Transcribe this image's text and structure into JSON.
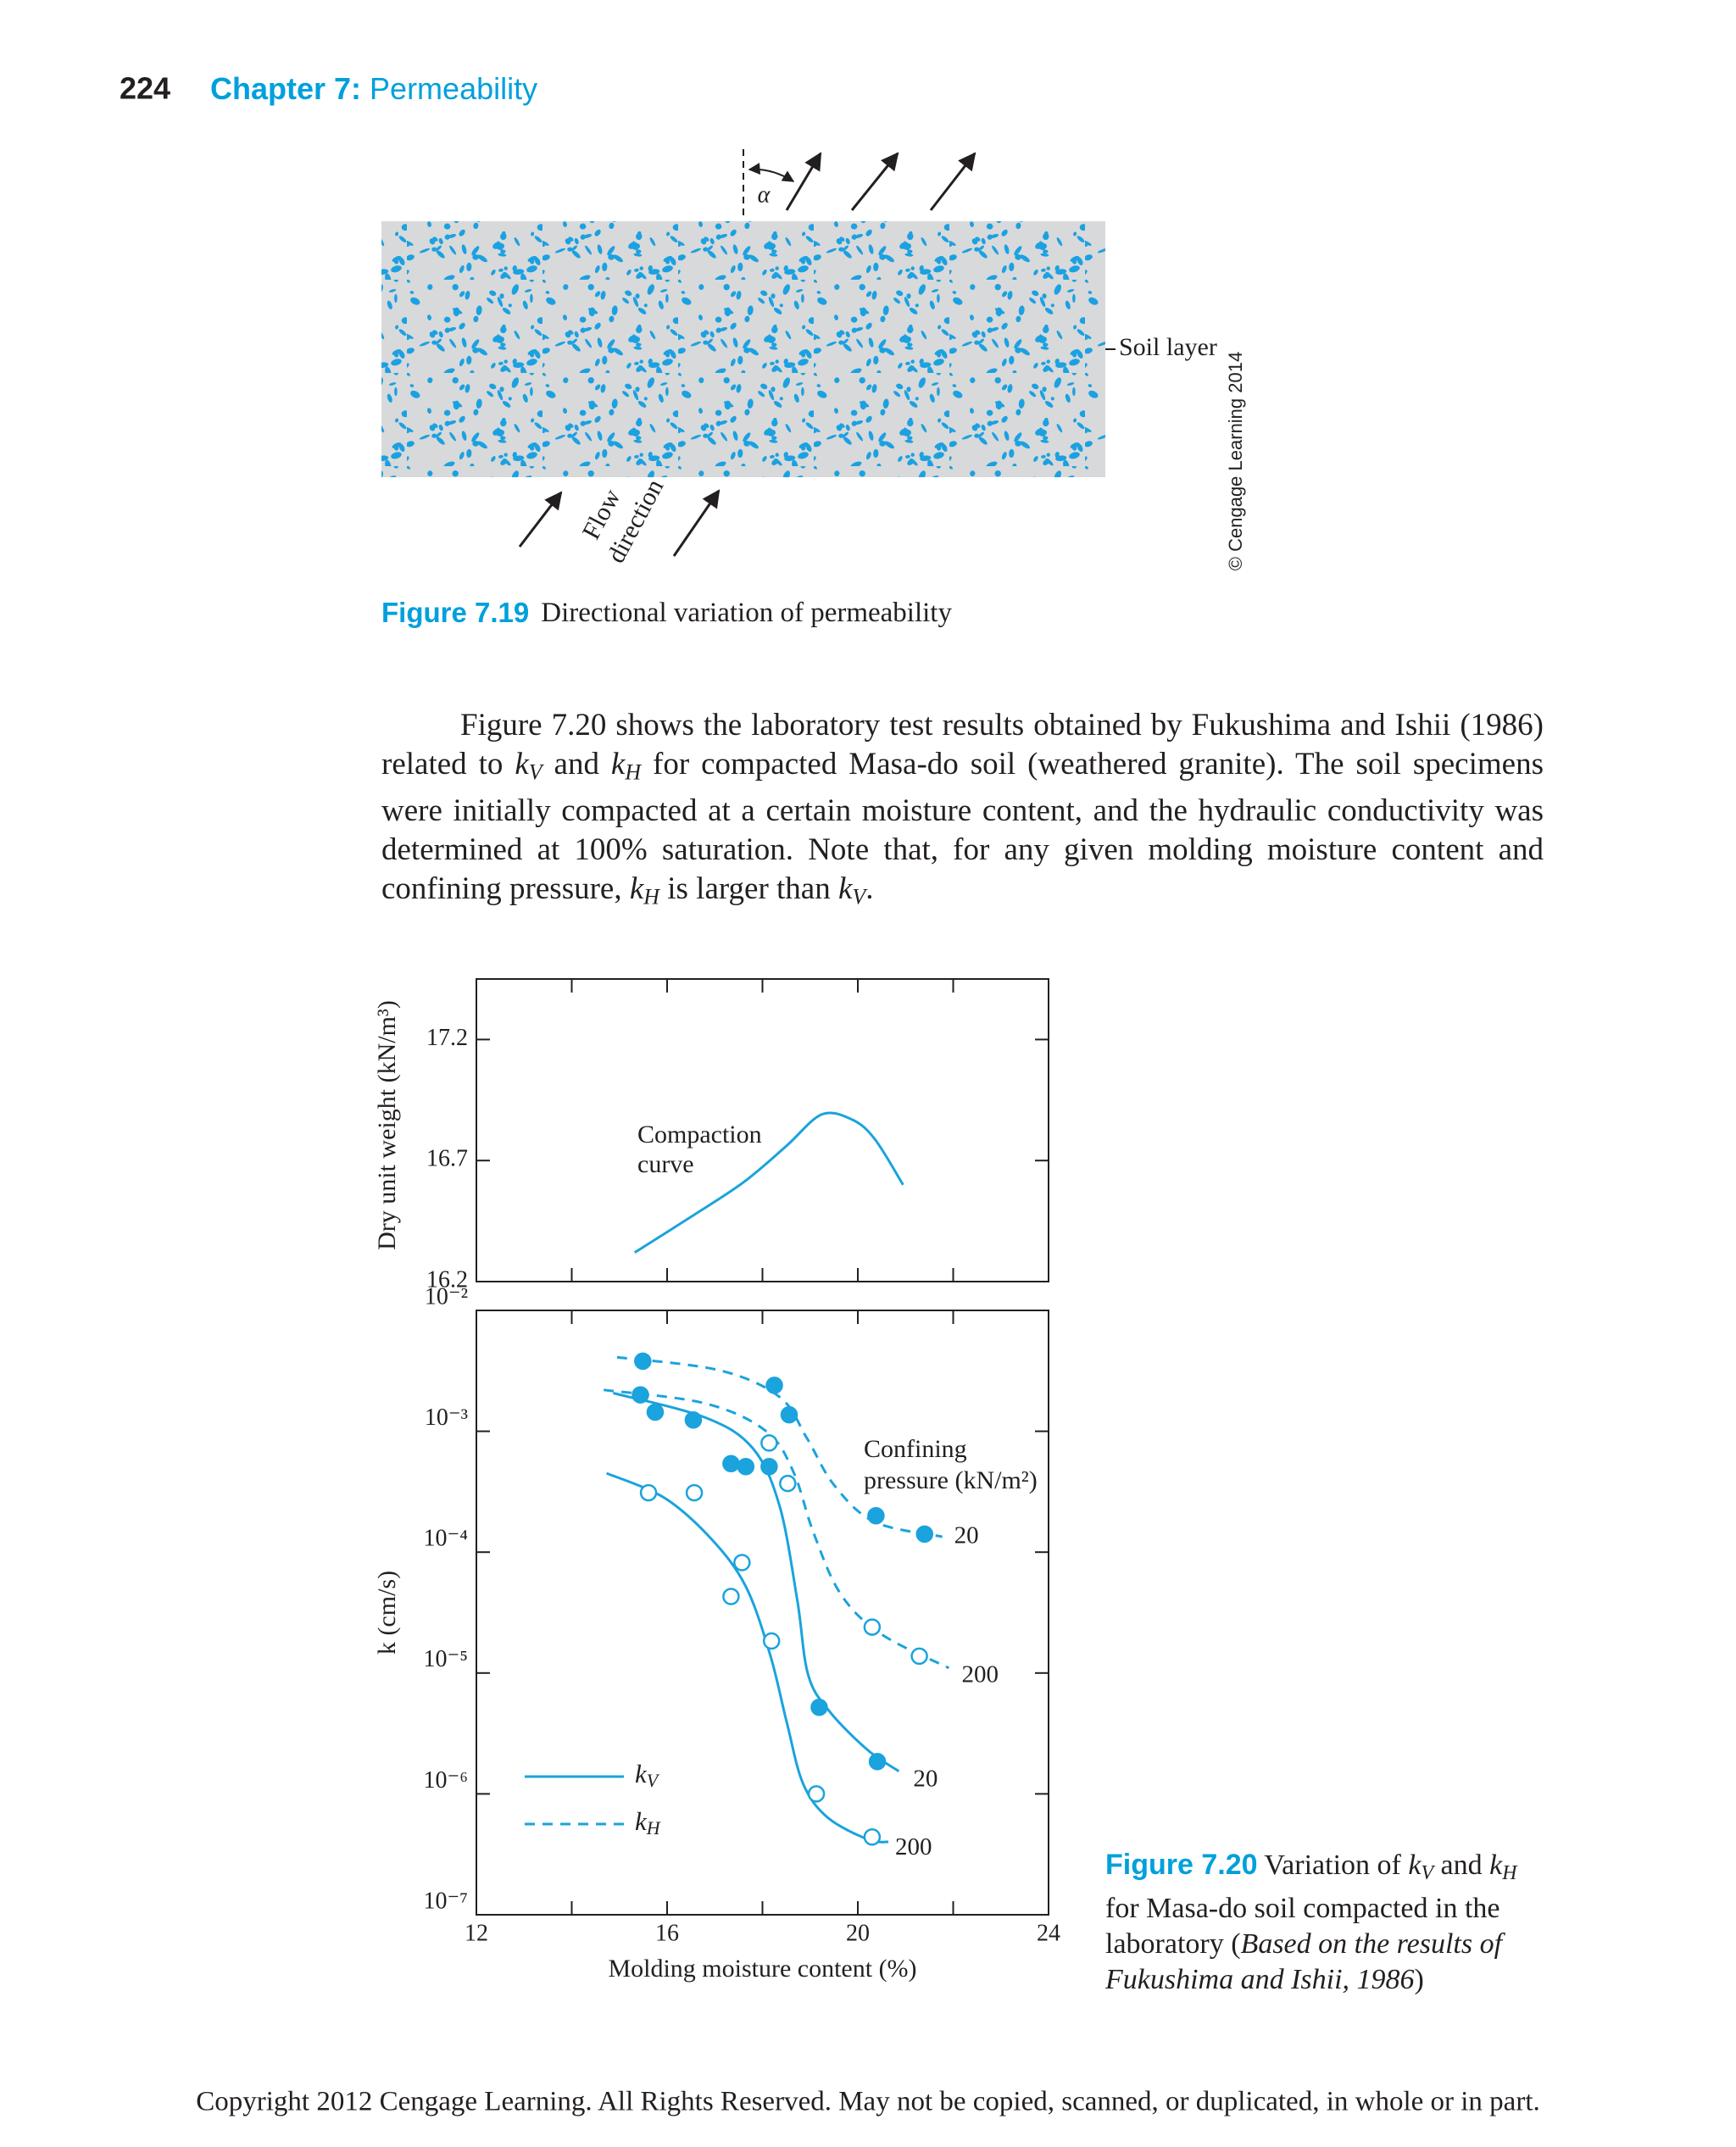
{
  "header": {
    "page_number": "224",
    "chapter": "Chapter 7:",
    "chapter_title": "Permeability"
  },
  "figure_7_19": {
    "angle_label": "α",
    "layer_label": "Soil layer",
    "flow_label": [
      "Flow",
      "direction"
    ],
    "credit": "© Cengage Learning 2014",
    "caption_label": "Figure 7.19",
    "caption_text": "Directional variation of permeability"
  },
  "paragraph": {
    "runs": [
      {
        "text": "Figure 7.20 shows the laboratory test results obtained by Fukushima and Ishii (1986) related to ",
        "style": "plain"
      },
      {
        "text": "k",
        "style": "italic"
      },
      {
        "text": "V",
        "style": "sub"
      },
      {
        "text": " and ",
        "style": "plain"
      },
      {
        "text": "k",
        "style": "italic"
      },
      {
        "text": "H",
        "style": "sub"
      },
      {
        "text": " for compacted Masa-do soil (weathered granite). The soil specimens were initially compacted at a certain moisture content, and the hydraulic conductivity was determined at 100% saturation. Note that, for any given molding moisture content and confining pressure, ",
        "style": "plain"
      },
      {
        "text": "k",
        "style": "italic"
      },
      {
        "text": "H",
        "style": "sub"
      },
      {
        "text": " is larger than ",
        "style": "plain"
      },
      {
        "text": "k",
        "style": "italic"
      },
      {
        "text": "V",
        "style": "sub"
      },
      {
        "text": ".",
        "style": "plain"
      }
    ]
  },
  "chart_data": [
    {
      "type": "line",
      "ylabel": "Dry unit weight (kN/m³)",
      "annotation": [
        "Compaction",
        "curve"
      ],
      "color": "#1aa3dc",
      "x": [
        15.32,
        16.52,
        17.6,
        18.5,
        19.24,
        19.87,
        20.35,
        20.95
      ],
      "values": [
        16.32,
        16.47,
        16.61,
        16.76,
        16.89,
        16.87,
        16.79,
        16.6
      ],
      "xlim": [
        12,
        24
      ],
      "xtick_marks": [
        14,
        16,
        18,
        20,
        22
      ],
      "ylim": [
        16.2,
        17.45
      ],
      "yticks": [
        16.2,
        16.7,
        17.2
      ]
    },
    {
      "type": "scatter",
      "ylabel": "k (cm/s)",
      "xlabel": "Molding moisture content (%)",
      "annotation": [
        "Confining",
        "pressure (kN/m²)"
      ],
      "log_y": true,
      "xlim": [
        12,
        24
      ],
      "xticks": [
        12,
        16,
        20,
        24
      ],
      "xtick_marks": [
        14,
        18,
        22
      ],
      "ylim": [
        1e-07,
        0.01
      ],
      "yticks": [
        {
          "value": 1e-07,
          "label": "10⁻⁷"
        },
        {
          "value": 1e-06,
          "label": "10⁻⁶"
        },
        {
          "value": 1e-05,
          "label": "10⁻⁵"
        },
        {
          "value": 0.0001,
          "label": "10⁻⁴"
        },
        {
          "value": 0.001,
          "label": "10⁻³"
        },
        {
          "value": 0.01,
          "label": "10⁻²"
        }
      ],
      "legend": [
        {
          "symbol": "k",
          "subscript": "V",
          "line_style": "solid"
        },
        {
          "symbol": "k",
          "subscript": "H",
          "line_style": "dashed"
        }
      ],
      "series": [
        {
          "name": "20",
          "line_style": "dashed",
          "marker": "filled",
          "color": "#1aa3dc",
          "x": [
            15.49,
            18.25,
            18.56,
            20.38,
            21.4
          ],
          "values": [
            0.0038,
            0.0024,
            0.00137,
            0.0002,
            0.000141
          ],
          "fit_x": [
            14.95,
            17.09,
            18.36,
            18.93,
            19.5,
            20.35,
            21.77
          ],
          "fit_values": [
            0.0041,
            0.0032,
            0.00192,
            0.00088,
            0.00036,
            0.000178,
            0.000134
          ]
        },
        {
          "name": "200",
          "line_style": "dashed",
          "marker": "open",
          "color": "#1aa3dc",
          "x": [
            18.14,
            18.53,
            20.3,
            21.29
          ],
          "values": [
            0.0008,
            0.00037,
            2.4e-05,
            1.38e-05
          ],
          "fit_x": [
            14.67,
            16.8,
            18.08,
            18.65,
            19.07,
            19.64,
            20.49,
            21.91
          ],
          "fit_values": [
            0.0022,
            0.0017,
            0.001,
            0.00046,
            0.000145,
            4.5e-05,
            2.1e-05,
            1.1e-05
          ]
        },
        {
          "name": "20",
          "line_style": "solid",
          "marker": "filled",
          "color": "#1aa3dc",
          "x": [
            15.44,
            15.75,
            16.55,
            17.34,
            17.65,
            18.14,
            19.19,
            20.41
          ],
          "values": [
            0.002,
            0.00144,
            0.00124,
            0.00054,
            0.00051,
            0.00051,
            5.2e-06,
            1.85e-06
          ],
          "fit_x": [
            14.87,
            16.8,
            17.8,
            18.36,
            18.73,
            18.96,
            19.41,
            20.21,
            20.86
          ],
          "fit_values": [
            0.00207,
            0.0013,
            0.00072,
            0.00024,
            4e-05,
            9.6e-06,
            4.8e-06,
            2.3e-06,
            1.54e-06
          ]
        },
        {
          "name": "200",
          "line_style": "solid",
          "marker": "open",
          "color": "#1aa3dc",
          "x": [
            15.61,
            16.57,
            17.57,
            17.34,
            18.19,
            19.13,
            20.3
          ],
          "values": [
            0.00031,
            0.00031,
            8.2e-05,
            4.3e-05,
            1.84e-05,
            1e-06,
            4.4e-07
          ],
          "fit_x": [
            14.73,
            15.95,
            16.94,
            17.65,
            18.16,
            18.51,
            18.85,
            19.36,
            20.21,
            20.64
          ],
          "fit_values": [
            0.00045,
            0.00028,
            0.000127,
            5.2e-05,
            1.42e-05,
            3.9e-06,
            1.22e-06,
            6.4e-07,
            4.2e-07,
            4e-07
          ]
        }
      ]
    }
  ],
  "figure_7_20": {
    "caption_label": "Figure 7.20",
    "runs": [
      {
        "text": " Variation of ",
        "style": "plain"
      },
      {
        "text": "k",
        "style": "italic"
      },
      {
        "text": "V",
        "style": "sub"
      },
      {
        "text": " and ",
        "style": "plain"
      },
      {
        "text": "k",
        "style": "italic"
      },
      {
        "text": "H",
        "style": "sub"
      },
      {
        "text": " for Masa-do soil compacted in the laboratory (",
        "style": "plain"
      },
      {
        "text": "Based on the results of Fukushima and Ishii, 1986",
        "style": "italic"
      },
      {
        "text": ")",
        "style": "plain"
      }
    ]
  },
  "footer": "Copyright 2012 Cengage Learning. All Rights Reserved. May not be copied, scanned, or duplicated, in whole or in part."
}
